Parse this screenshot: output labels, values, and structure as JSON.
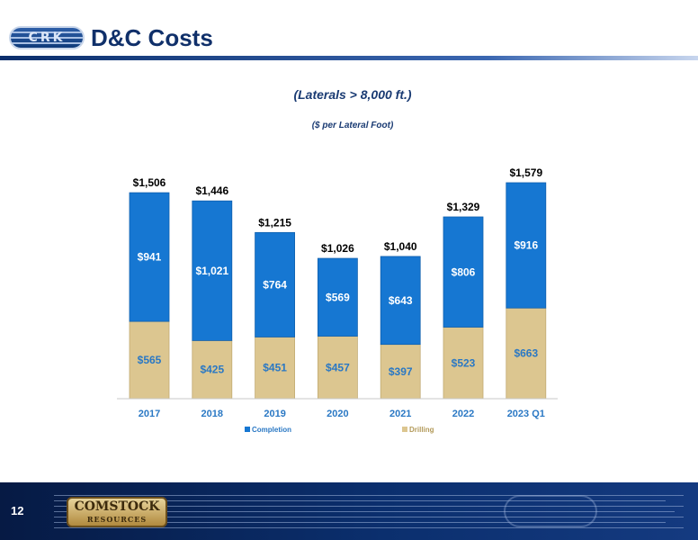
{
  "header": {
    "logo_text": "CRK",
    "title": "D&C Costs"
  },
  "subtitles": {
    "line1": "(Laterals > 8,000 ft.)",
    "line2": "($ per Lateral Foot)"
  },
  "footer": {
    "page_number": "12",
    "logo_line1": "COMSTOCK",
    "logo_line2": "RESOURCES"
  },
  "colors": {
    "completion": "#1677d2",
    "drilling": "#dcc690",
    "completion_label": "#ffffff",
    "drilling_label": "#2a78c4",
    "axis_label": "#2a78c4",
    "total_label": "#000000",
    "brand_navy": "#10306a"
  },
  "chart_data": {
    "type": "bar",
    "stacked": true,
    "categories": [
      "2017",
      "2018",
      "2019",
      "2020",
      "2021",
      "2022",
      "2023 Q1"
    ],
    "series": [
      {
        "name": "Drilling",
        "values": [
          565,
          425,
          451,
          457,
          397,
          523,
          663
        ],
        "labels": [
          "$565",
          "$425",
          "$451",
          "$457",
          "$397",
          "$523",
          "$663"
        ]
      },
      {
        "name": "Completion",
        "values": [
          941,
          1021,
          764,
          569,
          643,
          806,
          916
        ],
        "labels": [
          "$941",
          "$1,021",
          "$764",
          "$569",
          "$643",
          "$806",
          "$916"
        ]
      }
    ],
    "totals": [
      1506,
      1446,
      1215,
      1026,
      1040,
      1329,
      1579
    ],
    "total_labels": [
      "$1,506",
      "$1,446",
      "$1,215",
      "$1,026",
      "$1,040",
      "$1,329",
      "$1,579"
    ],
    "legend": [
      "Completion",
      "Drilling"
    ],
    "legend_position": "bottom",
    "grid": false,
    "ylim": [
      0,
      1579
    ]
  }
}
